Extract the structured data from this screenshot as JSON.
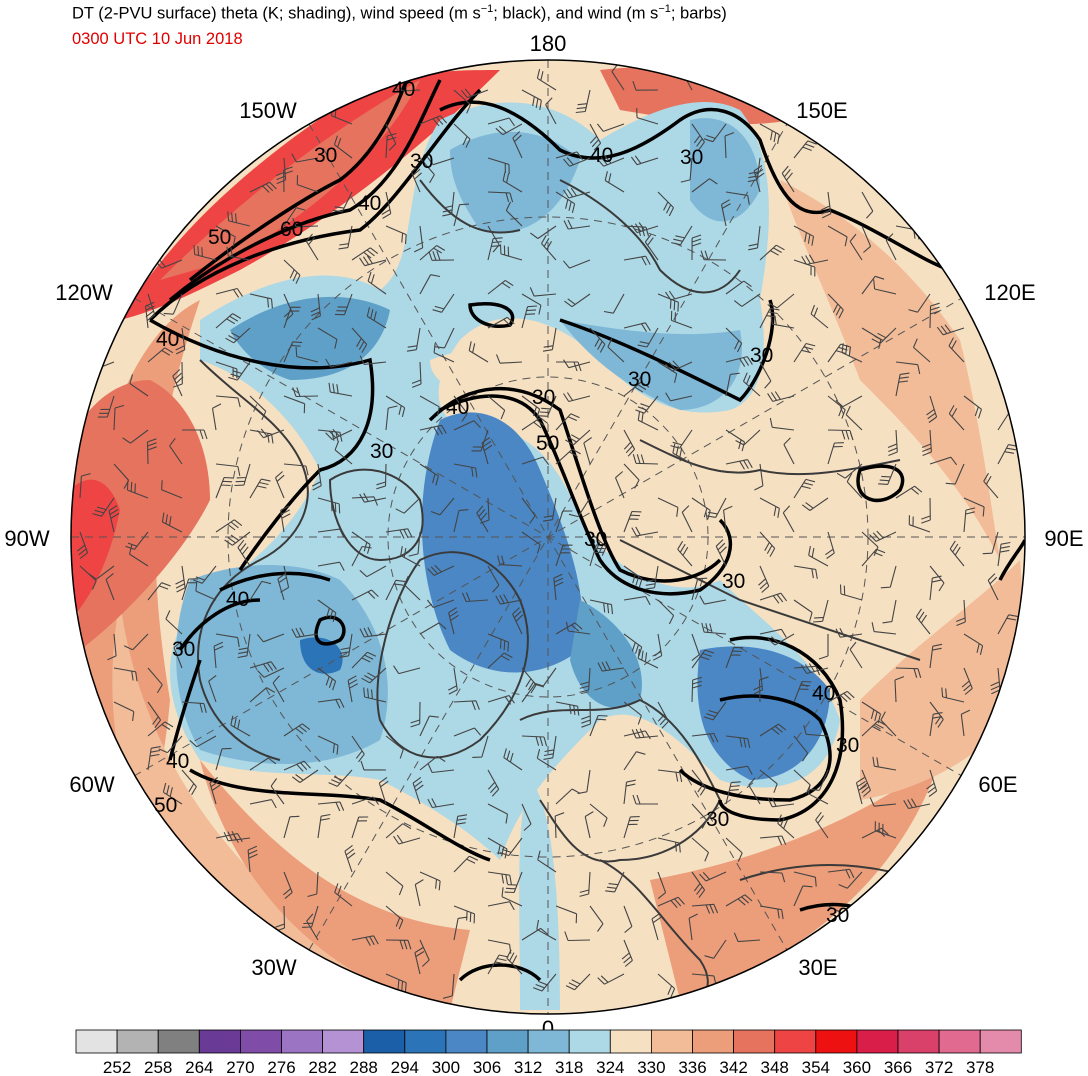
{
  "header": {
    "title_parts": [
      "DT (2-PVU surface) theta (K; shading), wind speed (m s",
      "−1",
      "; black), and wind (m s",
      "−1",
      "; barbs)"
    ],
    "datetime": "0300 UTC 10 Jun 2018"
  },
  "map": {
    "projection": "north-polar-stereographic",
    "longitude_labels": [
      "180",
      "150E",
      "120E",
      "90E",
      "60E",
      "30E",
      "0",
      "30W",
      "60W",
      "90W",
      "120W",
      "150W"
    ],
    "wind_speed_contour_labels": [
      "40",
      "30",
      "60",
      "50",
      "40",
      "30",
      "40",
      "30",
      "40",
      "30",
      "30",
      "40",
      "50",
      "30",
      "30",
      "30",
      "40",
      "30",
      "40",
      "30",
      "40",
      "50",
      "30",
      "30",
      "30"
    ]
  },
  "colorbar": {
    "colors": [
      "#e3e3e3",
      "#b3b3b3",
      "#808080",
      "#6a3a97",
      "#7f4ca8",
      "#9c74c4",
      "#b492d4",
      "#1b5fa8",
      "#2c74b8",
      "#4a87c4",
      "#5fa0c8",
      "#7fb8d6",
      "#add8e6",
      "#f6e0c2",
      "#f2bc98",
      "#ec9d7a",
      "#e6735e",
      "#ee4444",
      "#ee1111",
      "#d91e4a",
      "#d9406a",
      "#e06a90",
      "#e48bab"
    ],
    "labels": [
      "252",
      "258",
      "264",
      "270",
      "276",
      "282",
      "288",
      "294",
      "300",
      "306",
      "312",
      "318",
      "324",
      "330",
      "336",
      "342",
      "348",
      "354",
      "360",
      "366",
      "372",
      "378"
    ]
  }
}
